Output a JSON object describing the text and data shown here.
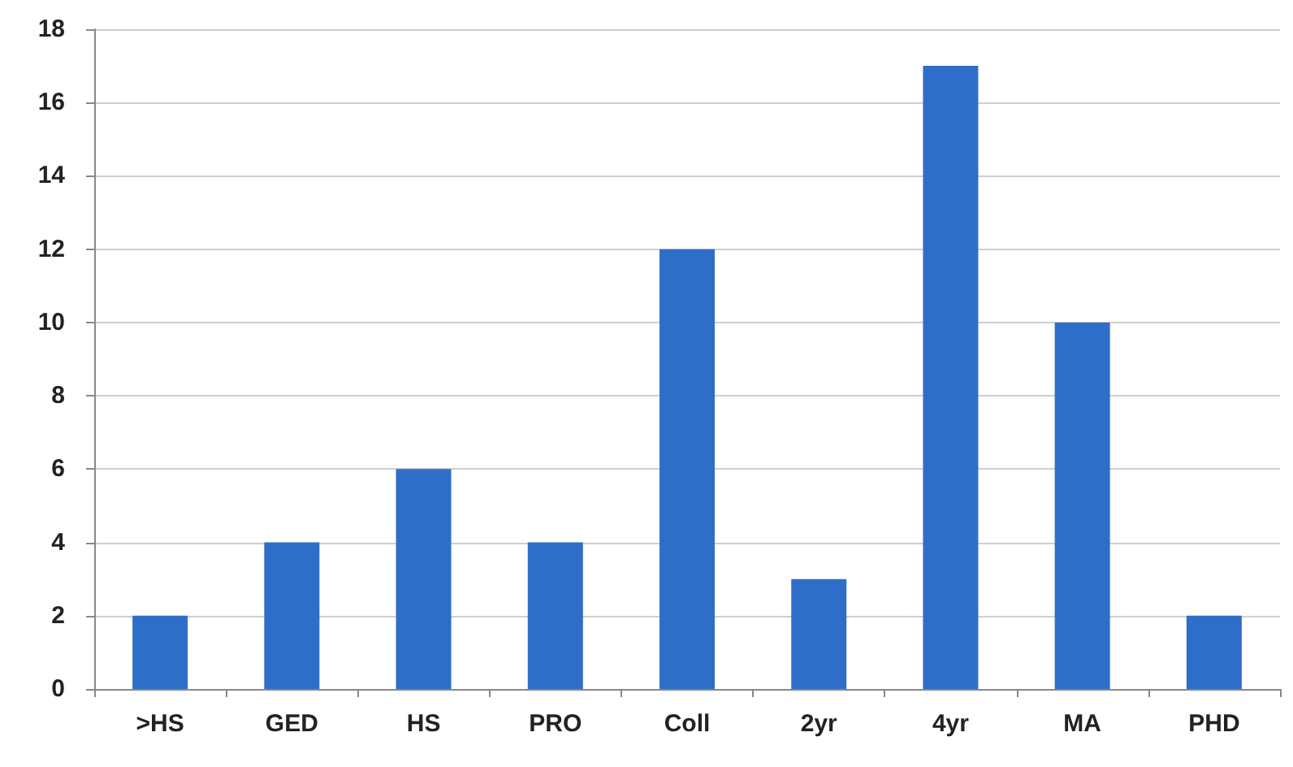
{
  "chart_data": {
    "type": "bar",
    "categories": [
      ">HS",
      "GED",
      "HS",
      "PRO",
      "Coll",
      "2yr",
      "4yr",
      "MA",
      "PHD"
    ],
    "values": [
      2,
      4,
      6,
      4,
      12,
      3,
      17,
      10,
      2
    ],
    "color": "#2f6ec8",
    "ylim": [
      0,
      18
    ],
    "yticks": [
      0,
      2,
      4,
      6,
      8,
      10,
      12,
      14,
      16,
      18
    ],
    "grid": "y"
  }
}
